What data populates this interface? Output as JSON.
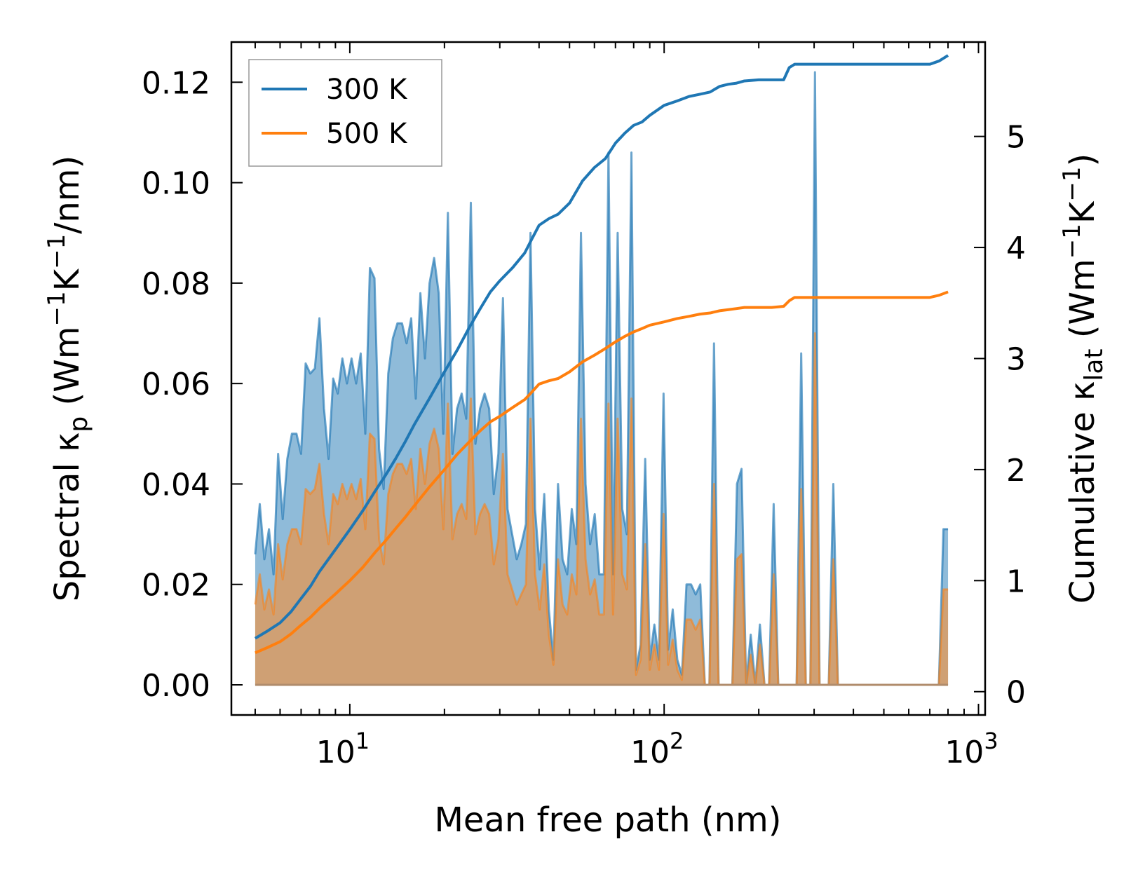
{
  "chart_data": {
    "type": "area",
    "xscale": "log",
    "xlabel": "Mean free path (nm)",
    "xlim": [
      4.2,
      1050
    ],
    "xticks": [
      {
        "value": 10,
        "base": "10",
        "exp": "1"
      },
      {
        "value": 100,
        "base": "10",
        "exp": "2"
      },
      {
        "value": 1000,
        "base": "10",
        "exp": "3"
      }
    ],
    "ylabel_left": {
      "prefix": "Spectral κ",
      "sub": "p",
      "units_open": " (Wm",
      "sup1": "−1",
      "mid": "K",
      "sup2": "−1",
      "units_close": "/nm)"
    },
    "ylim_left": [
      -0.006,
      0.128
    ],
    "yticks_left": [
      "0.00",
      "0.02",
      "0.04",
      "0.06",
      "0.08",
      "0.10",
      "0.12"
    ],
    "ylabel_right": {
      "prefix": "Cumulative κ",
      "sub": "lat",
      "units_open": " (Wm",
      "sup1": "−1",
      "mid": "K",
      "sup2": "−1",
      "units_close": ")"
    },
    "ylim_right": [
      -0.21,
      5.85
    ],
    "yticks_right": [
      "0",
      "1",
      "2",
      "3",
      "4",
      "5"
    ],
    "legend": {
      "position": "top-left",
      "entries": [
        "300 K",
        "500 K"
      ]
    },
    "colors": {
      "s300": "#1f77b4",
      "s500": "#ff7f0e",
      "fill300": "#1f77b4",
      "fill500": "#e8964c"
    },
    "spectral_x_range": [
      5.0,
      800
    ],
    "spectral_300K": [
      0.026,
      0.036,
      0.025,
      0.031,
      0.022,
      0.046,
      0.033,
      0.045,
      0.05,
      0.05,
      0.046,
      0.064,
      0.062,
      0.063,
      0.073,
      0.055,
      0.045,
      0.061,
      0.058,
      0.065,
      0.06,
      0.065,
      0.06,
      0.066,
      0.05,
      0.083,
      0.081,
      0.047,
      0.039,
      0.062,
      0.069,
      0.072,
      0.072,
      0.068,
      0.073,
      0.057,
      0.078,
      0.065,
      0.08,
      0.085,
      0.078,
      0.05,
      0.094,
      0.046,
      0.055,
      0.058,
      0.053,
      0.096,
      0.048,
      0.055,
      0.058,
      0.055,
      0.038,
      0.046,
      0.077,
      0.035,
      0.03,
      0.025,
      0.028,
      0.032,
      0.09,
      0.035,
      0.023,
      0.038,
      0.015,
      0.005,
      0.04,
      0.025,
      0.022,
      0.035,
      0.028,
      0.09,
      0.04,
      0.028,
      0.034,
      0.022,
      0.022,
      0.106,
      0.022,
      0.09,
      0.035,
      0.03,
      0.106,
      0.003,
      0.008,
      0.045,
      0.005,
      0.012,
      0.005,
      0.058,
      0.007,
      0.015,
      0.005,
      0.002,
      0.02,
      0.02,
      0.018,
      0.02,
      0.0,
      0.0,
      0.068,
      0.0,
      0.0,
      0.0,
      0.0,
      0.04,
      0.043,
      0.0,
      0.01,
      0.0,
      0.012,
      0.0,
      0.0,
      0.036,
      0.0,
      0.0,
      0.0,
      0.0,
      0.0,
      0.066,
      0.0,
      0.0,
      0.122,
      0.0,
      0.0,
      0.0,
      0.04,
      0.0,
      0.0,
      0.0,
      0.0,
      0.0,
      0.0,
      0.0,
      0.0,
      0.0,
      0.0,
      0.0,
      0.0,
      0.0,
      0.0,
      0.0,
      0.0,
      0.0,
      0.0,
      0.0,
      0.0,
      0.0,
      0.0,
      0.0,
      0.031,
      0.031
    ],
    "spectral_500K": [
      0.016,
      0.022,
      0.015,
      0.019,
      0.014,
      0.028,
      0.021,
      0.028,
      0.031,
      0.031,
      0.028,
      0.039,
      0.038,
      0.039,
      0.044,
      0.034,
      0.028,
      0.038,
      0.036,
      0.04,
      0.037,
      0.04,
      0.037,
      0.041,
      0.031,
      0.05,
      0.049,
      0.029,
      0.024,
      0.038,
      0.042,
      0.044,
      0.044,
      0.042,
      0.045,
      0.035,
      0.047,
      0.04,
      0.048,
      0.051,
      0.047,
      0.031,
      0.056,
      0.029,
      0.034,
      0.036,
      0.033,
      0.057,
      0.03,
      0.034,
      0.036,
      0.034,
      0.024,
      0.029,
      0.046,
      0.022,
      0.019,
      0.016,
      0.018,
      0.02,
      0.053,
      0.022,
      0.015,
      0.024,
      0.01,
      0.004,
      0.025,
      0.016,
      0.014,
      0.022,
      0.018,
      0.053,
      0.025,
      0.018,
      0.021,
      0.014,
      0.014,
      0.056,
      0.014,
      0.053,
      0.022,
      0.019,
      0.057,
      0.002,
      0.005,
      0.028,
      0.003,
      0.008,
      0.003,
      0.034,
      0.004,
      0.009,
      0.003,
      0.001,
      0.013,
      0.013,
      0.011,
      0.013,
      0.0,
      0.0,
      0.04,
      0.0,
      0.0,
      0.0,
      0.0,
      0.025,
      0.026,
      0.0,
      0.006,
      0.0,
      0.008,
      0.0,
      0.0,
      0.022,
      0.0,
      0.0,
      0.0,
      0.0,
      0.0,
      0.039,
      0.0,
      0.0,
      0.07,
      0.0,
      0.0,
      0.0,
      0.025,
      0.0,
      0.0,
      0.0,
      0.0,
      0.0,
      0.0,
      0.0,
      0.0,
      0.0,
      0.0,
      0.0,
      0.0,
      0.0,
      0.0,
      0.0,
      0.0,
      0.0,
      0.0,
      0.0,
      0.0,
      0.0,
      0.0,
      0.0,
      0.019,
      0.019
    ],
    "cumulative_300K": {
      "x": [
        5.0,
        5.5,
        6.0,
        6.5,
        7.0,
        7.5,
        8.0,
        9.0,
        10.0,
        11.0,
        12.0,
        13.0,
        14.0,
        15.0,
        16.0,
        18.0,
        20.0,
        22.0,
        24.0,
        26.0,
        28.0,
        30.0,
        33.0,
        36.0,
        38.0,
        40.0,
        43.0,
        46.0,
        50.0,
        55.0,
        60.0,
        65.0,
        70.0,
        75.0,
        80.0,
        85.0,
        90.0,
        100.0,
        110.0,
        120.0,
        130.0,
        140.0,
        150.0,
        160.0,
        170.0,
        180.0,
        200.0,
        220.0,
        240.0,
        250.0,
        260.0,
        280.0,
        300.0,
        400.0,
        500.0,
        600.0,
        700.0,
        750.0,
        800.0
      ],
      "y": [
        0.48,
        0.55,
        0.62,
        0.72,
        0.84,
        0.95,
        1.08,
        1.28,
        1.46,
        1.63,
        1.8,
        1.95,
        2.1,
        2.25,
        2.4,
        2.65,
        2.88,
        3.08,
        3.28,
        3.45,
        3.6,
        3.7,
        3.82,
        3.95,
        4.08,
        4.2,
        4.26,
        4.3,
        4.4,
        4.6,
        4.72,
        4.8,
        4.94,
        5.03,
        5.1,
        5.13,
        5.19,
        5.28,
        5.32,
        5.36,
        5.38,
        5.4,
        5.45,
        5.47,
        5.48,
        5.5,
        5.51,
        5.51,
        5.51,
        5.62,
        5.65,
        5.65,
        5.65,
        5.65,
        5.65,
        5.65,
        5.65,
        5.68,
        5.73
      ]
    },
    "cumulative_500K": {
      "x": [
        5.0,
        5.5,
        6.0,
        6.5,
        7.0,
        7.5,
        8.0,
        9.0,
        10.0,
        11.0,
        12.0,
        13.0,
        14.0,
        15.0,
        16.0,
        18.0,
        20.0,
        22.0,
        24.0,
        26.0,
        28.0,
        30.0,
        33.0,
        36.0,
        38.0,
        40.0,
        43.0,
        46.0,
        50.0,
        55.0,
        60.0,
        65.0,
        70.0,
        75.0,
        80.0,
        85.0,
        90.0,
        100.0,
        110.0,
        120.0,
        130.0,
        140.0,
        150.0,
        160.0,
        170.0,
        180.0,
        200.0,
        220.0,
        240.0,
        250.0,
        260.0,
        280.0,
        300.0,
        400.0,
        500.0,
        600.0,
        700.0,
        750.0,
        800.0
      ],
      "y": [
        0.35,
        0.4,
        0.45,
        0.52,
        0.6,
        0.67,
        0.75,
        0.88,
        1.0,
        1.12,
        1.25,
        1.36,
        1.47,
        1.57,
        1.67,
        1.85,
        2.0,
        2.14,
        2.25,
        2.35,
        2.43,
        2.48,
        2.56,
        2.63,
        2.7,
        2.77,
        2.8,
        2.82,
        2.88,
        2.97,
        3.03,
        3.09,
        3.15,
        3.2,
        3.24,
        3.27,
        3.3,
        3.33,
        3.36,
        3.38,
        3.4,
        3.41,
        3.43,
        3.44,
        3.45,
        3.46,
        3.46,
        3.46,
        3.47,
        3.52,
        3.55,
        3.55,
        3.55,
        3.55,
        3.55,
        3.55,
        3.55,
        3.57,
        3.6
      ]
    }
  }
}
